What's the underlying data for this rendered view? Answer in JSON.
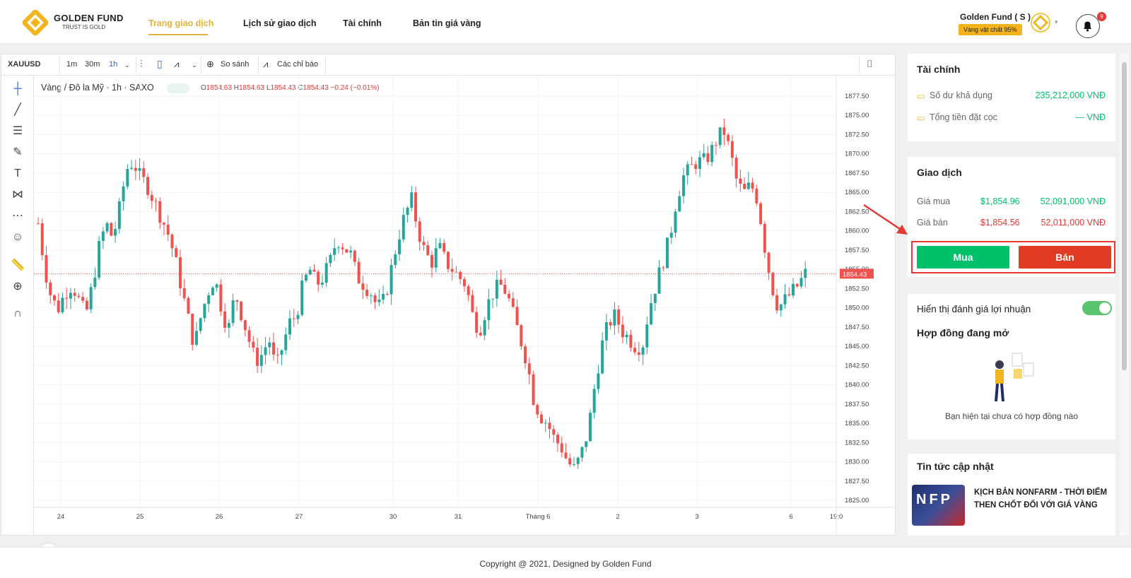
{
  "header": {
    "logo_name": "GOLDEN FUND",
    "logo_tagline": "TRUST IS GOLD",
    "nav": [
      "Trang giao dịch",
      "Lịch sử giao dịch",
      "Tài chính",
      "Bản tin giá vàng"
    ],
    "user_name": "Golden Fund ( S )",
    "user_badge": "Vàng vật chất 95%",
    "notification_count": "9"
  },
  "chart_toolbar": {
    "symbol": "XAUUSD",
    "intervals": [
      "1m",
      "30m",
      "1h"
    ],
    "compare": "So sánh",
    "indicators": "Các chỉ báo"
  },
  "chart_legend": {
    "title": "Vàng / Đô la Mỹ · 1h · SAXO",
    "o_label": "O",
    "o": "1854.63",
    "h_label": "H",
    "h": "1854.63",
    "l_label": "L",
    "l": "1854.43",
    "c_label": "C",
    "c": "1854.43",
    "change": "−0.24 (−0.01%)",
    "last_price": "1854.43"
  },
  "chart_data": {
    "type": "candlestick",
    "y_ticks": [
      "1877.50",
      "1875.00",
      "1872.50",
      "1870.00",
      "1867.50",
      "1865.00",
      "1862.50",
      "1860.00",
      "1857.50",
      "1855.00",
      "1852.50",
      "1850.00",
      "1847.50",
      "1845.00",
      "1842.50",
      "1840.00",
      "1837.50",
      "1835.00",
      "1832.50",
      "1830.00",
      "1827.50",
      "1825.00"
    ],
    "x_ticks": [
      "24",
      "25",
      "26",
      "27",
      "30",
      "31",
      "Tháng 6",
      "2",
      "3",
      "6",
      "19:0"
    ],
    "ylim": [
      1825,
      1877.5
    ],
    "close_path": [
      1861,
      1855,
      1851,
      1850,
      1852,
      1853,
      1851,
      1849,
      1853,
      1858,
      1861,
      1859,
      1863,
      1868,
      1869,
      1867,
      1866,
      1864,
      1862,
      1860,
      1857,
      1853,
      1849,
      1845,
      1849,
      1852,
      1854,
      1850,
      1847,
      1852,
      1849,
      1846,
      1843,
      1844,
      1846,
      1842,
      1845,
      1848,
      1849,
      1853,
      1855,
      1853,
      1854,
      1856,
      1859,
      1858,
      1857,
      1854,
      1853,
      1852,
      1850,
      1851,
      1855,
      1859,
      1862,
      1864,
      1860,
      1857,
      1856,
      1858,
      1856,
      1855,
      1854,
      1853,
      1849,
      1847,
      1850,
      1852,
      1853,
      1852,
      1849,
      1846,
      1843,
      1838,
      1836,
      1835,
      1833,
      1832,
      1830,
      1829,
      1831,
      1834,
      1840,
      1845,
      1848,
      1849,
      1847,
      1846,
      1845,
      1845,
      1850,
      1853,
      1856,
      1859,
      1864,
      1867,
      1868,
      1869,
      1869,
      1870,
      1872,
      1873,
      1870,
      1866,
      1865,
      1866,
      1864,
      1858,
      1853,
      1850,
      1851,
      1852,
      1853,
      1854.43
    ]
  },
  "finance": {
    "title": "Tài chính",
    "balance_label": "Số dư khả dụng",
    "balance_value": "235,212,000  VNĐ",
    "deposit_label": "Tổng tiền đặt cọc",
    "deposit_value": "---  VNĐ"
  },
  "trade": {
    "title": "Giao dịch",
    "buy_label": "Giá mua",
    "buy_usd": "$1,854.96",
    "buy_vnd": "52,091,000  VNĐ",
    "sell_label": "Giá bán",
    "sell_usd": "$1,854.56",
    "sell_vnd": "52,011,000  VNĐ",
    "buy_button": "Mua",
    "sell_button": "Bán"
  },
  "contracts": {
    "toggle_label": "Hiển thị đánh giá lợi nhuận",
    "title": "Hợp đồng đang mở",
    "empty_text": "Bạn hiện tại chưa có hợp đồng nào"
  },
  "news": {
    "title": "Tin tức cập nhật",
    "item_title": "KỊCH BẢN NONFARM - THỜI ĐIỂM THEN CHỐT ĐỐI VỚI GIÁ VÀNG",
    "image_text": "NFP"
  },
  "footer": {
    "copyright": "Copyright @ 2021, Designed by Golden Fund"
  },
  "colors": {
    "gold": "#e0b43a",
    "up": "#26a69a",
    "down": "#ef5350",
    "buy": "#00c16a",
    "sell": "#e53935"
  }
}
